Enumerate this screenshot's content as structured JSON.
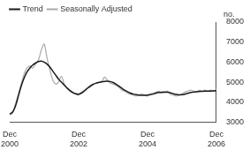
{
  "chart_data": {
    "type": "line",
    "y_label": "no.",
    "categories": [
      "Dec 2000",
      null,
      null,
      null,
      null,
      null,
      null,
      null,
      null,
      null,
      null,
      null,
      null,
      null,
      null,
      null,
      null,
      null,
      null,
      null,
      null,
      null,
      null,
      null,
      "Dec 2002",
      null,
      null,
      null,
      null,
      null,
      null,
      null,
      null,
      null,
      null,
      null,
      null,
      null,
      null,
      null,
      null,
      null,
      null,
      null,
      null,
      null,
      null,
      null,
      "Dec 2004",
      null,
      null,
      null,
      null,
      null,
      null,
      null,
      null,
      null,
      null,
      null,
      null,
      null,
      null,
      null,
      null,
      null,
      null,
      null,
      null,
      null,
      null,
      null,
      "Dec 2006"
    ],
    "series": [
      {
        "name": "Trend",
        "color": "#1a1a1a",
        "values": [
          3400,
          3500,
          3800,
          4300,
          4800,
          5200,
          5500,
          5700,
          5850,
          5950,
          6030,
          6050,
          6000,
          5900,
          5750,
          5550,
          5350,
          5150,
          5000,
          4850,
          4700,
          4580,
          4480,
          4420,
          4400,
          4450,
          4550,
          4680,
          4800,
          4880,
          4940,
          4980,
          5010,
          5040,
          5050,
          5030,
          4980,
          4900,
          4800,
          4700,
          4600,
          4520,
          4450,
          4400,
          4370,
          4350,
          4340,
          4340,
          4350,
          4370,
          4400,
          4450,
          4480,
          4500,
          4500,
          4490,
          4460,
          4420,
          4380,
          4360,
          4370,
          4400,
          4440,
          4480,
          4500,
          4520,
          4530,
          4540,
          4550,
          4550,
          4550,
          4560,
          4570
        ]
      },
      {
        "name": "Seasonally Adjusted",
        "color": "#aaaaaa",
        "values": [
          3350,
          3450,
          3900,
          4400,
          4900,
          5400,
          5700,
          5800,
          5700,
          5900,
          6100,
          6600,
          6900,
          6200,
          5600,
          5100,
          4900,
          5000,
          5300,
          4900,
          4700,
          4550,
          4450,
          4400,
          4350,
          4500,
          4600,
          4700,
          4750,
          4900,
          4950,
          5000,
          5000,
          5250,
          5100,
          4950,
          4900,
          4850,
          4750,
          4600,
          4550,
          4450,
          4400,
          4350,
          4300,
          4350,
          4400,
          4350,
          4300,
          4400,
          4450,
          4500,
          4550,
          4450,
          4500,
          4550,
          4400,
          4350,
          4300,
          4350,
          4400,
          4500,
          4550,
          4600,
          4550,
          4500,
          4600,
          4550,
          4600,
          4550,
          4600,
          4550,
          4650
        ]
      }
    ],
    "ylim": [
      3000,
      8000
    ],
    "yticks": [
      3000,
      4000,
      5000,
      6000,
      7000,
      8000
    ],
    "grid": false,
    "legend": "upper left"
  }
}
